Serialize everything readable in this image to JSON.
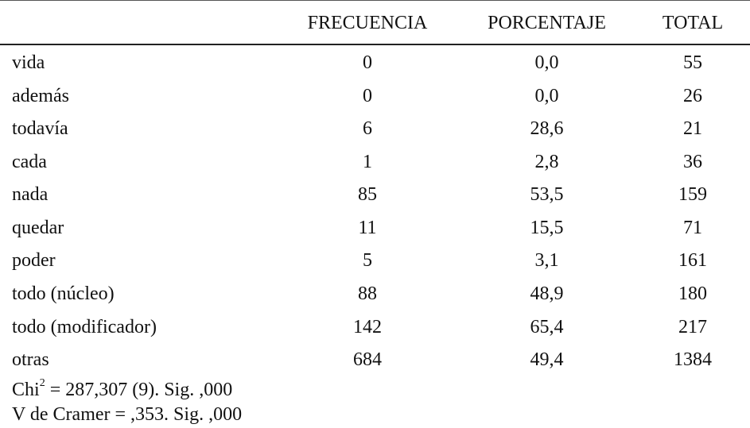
{
  "table": {
    "headers": {
      "label": "",
      "frecuencia": "FRECUENCIA",
      "porcentaje": "PORCENTAJE",
      "total": "TOTAL"
    },
    "rows": [
      {
        "label": "vida",
        "frecuencia": "0",
        "porcentaje": "0,0",
        "total": "55"
      },
      {
        "label": "además",
        "frecuencia": "0",
        "porcentaje": "0,0",
        "total": "26"
      },
      {
        "label": "todavía",
        "frecuencia": "6",
        "porcentaje": "28,6",
        "total": "21"
      },
      {
        "label": "cada",
        "frecuencia": "1",
        "porcentaje": "2,8",
        "total": "36"
      },
      {
        "label": "nada",
        "frecuencia": "85",
        "porcentaje": "53,5",
        "total": "159"
      },
      {
        "label": "quedar",
        "frecuencia": "11",
        "porcentaje": "15,5",
        "total": "71"
      },
      {
        "label": "poder",
        "frecuencia": "5",
        "porcentaje": "3,1",
        "total": "161"
      },
      {
        "label": "todo (núcleo)",
        "frecuencia": "88",
        "porcentaje": "48,9",
        "total": "180"
      },
      {
        "label": "todo (modificador)",
        "frecuencia": "142",
        "porcentaje": "65,4",
        "total": "217"
      },
      {
        "label": "otras",
        "frecuencia": "684",
        "porcentaje": "49,4",
        "total": "1384"
      }
    ]
  },
  "footnotes": {
    "chi_prefix": "Chi",
    "chi_exponent": "2",
    "chi_rest": " = 287,307 (9). Sig. ,000",
    "cramer": "V de Cramer = ,353. Sig. ,000"
  }
}
